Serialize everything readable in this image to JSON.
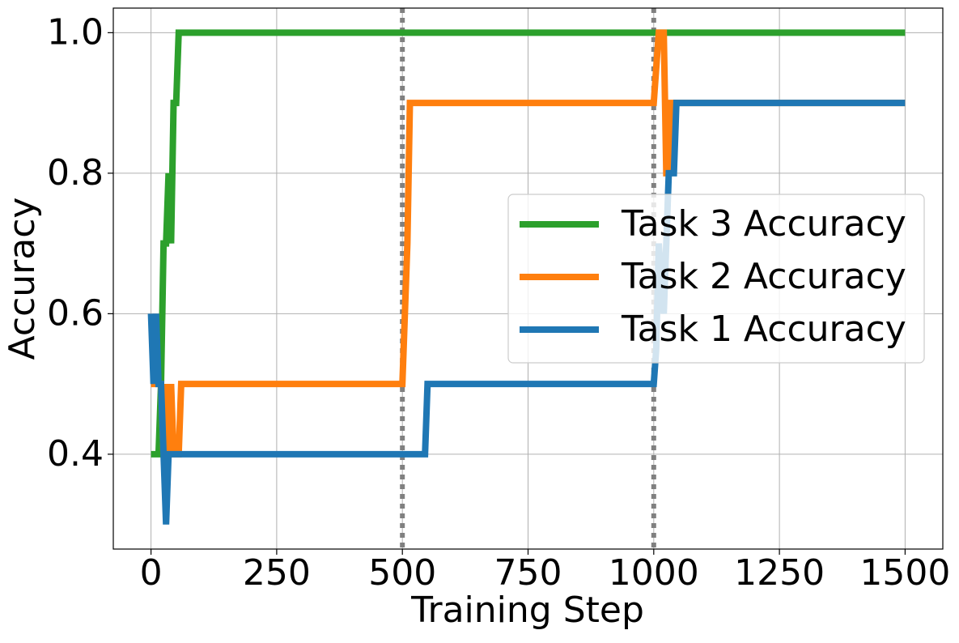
{
  "chart_data": {
    "type": "line",
    "x_label": "Training Step",
    "y_label": "Accuracy",
    "xlim": [
      -75,
      1575
    ],
    "ylim": [
      0.265,
      1.035
    ],
    "xticks": [
      0,
      250,
      500,
      750,
      1000,
      1250,
      1500
    ],
    "yticks": [
      {
        "value": 0.4,
        "label": "0.4"
      },
      {
        "value": 0.6,
        "label": "0.6"
      },
      {
        "value": 0.8,
        "label": "0.8"
      },
      {
        "value": 1.0,
        "label": "1.0"
      }
    ],
    "grid": true,
    "legend": "center right",
    "vlines": [
      500,
      1000
    ],
    "vline_color": "#808080",
    "series": [
      {
        "name": "Task 3 Accuracy",
        "color": "#2ca02c",
        "x": [
          0,
          15,
          20,
          25,
          30,
          35,
          40,
          45,
          50,
          55,
          1500
        ],
        "values": [
          0.4,
          0.4,
          0.5,
          0.7,
          0.7,
          0.8,
          0.7,
          0.9,
          0.9,
          1.0,
          1.0
        ]
      },
      {
        "name": "Task 2 Accuracy",
        "color": "#ff7f0e",
        "x": [
          0,
          10,
          20,
          25,
          30,
          35,
          40,
          45,
          55,
          60,
          500,
          505,
          510,
          515,
          1000,
          1010,
          1020,
          1025,
          1030,
          1035,
          1040,
          1045,
          1500
        ],
        "values": [
          0.5,
          0.5,
          0.5,
          0.4,
          0.5,
          0.4,
          0.5,
          0.4,
          0.4,
          0.5,
          0.5,
          0.6,
          0.7,
          0.9,
          0.9,
          1.0,
          1.0,
          0.8,
          0.8,
          0.9,
          0.9,
          0.9,
          0.9
        ]
      },
      {
        "name": "Task 1 Accuracy",
        "color": "#1f77b4",
        "x": [
          0,
          5,
          10,
          15,
          20,
          25,
          30,
          35,
          545,
          550,
          1000,
          1005,
          1010,
          1020,
          1025,
          1030,
          1040,
          1045,
          1500
        ],
        "values": [
          0.6,
          0.5,
          0.6,
          0.5,
          0.5,
          0.4,
          0.3,
          0.4,
          0.4,
          0.5,
          0.5,
          0.55,
          0.7,
          0.6,
          0.7,
          0.8,
          0.8,
          0.9,
          0.9
        ]
      }
    ]
  }
}
